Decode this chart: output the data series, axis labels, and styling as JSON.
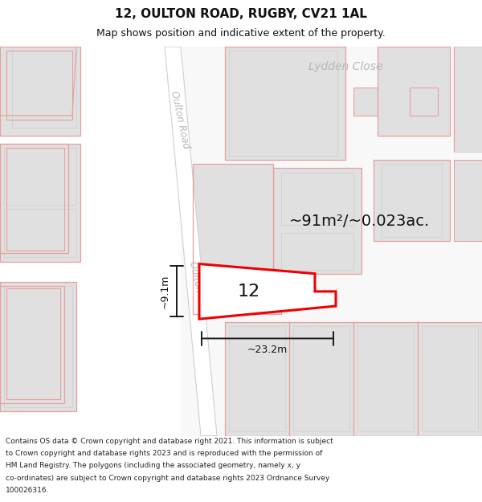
{
  "title": "12, OULTON ROAD, RUGBY, CV21 1AL",
  "subtitle": "Map shows position and indicative extent of the property.",
  "footer_lines": [
    "Contains OS data © Crown copyright and database right 2021. This information is subject",
    "to Crown copyright and database rights 2023 and is reproduced with the permission of",
    "HM Land Registry. The polygons (including the associated geometry, namely x, y",
    "co-ordinates) are subject to Crown copyright and database rights 2023 Ordnance Survey",
    "100026316."
  ],
  "area_label": "~91m²/~0.023ac.",
  "number_label": "12",
  "width_label": "~23.2m",
  "height_label": "~9.1m",
  "road_label": "Oulton Road",
  "close_label": "Lydden Close",
  "map_bg": "#f8f8f8",
  "building_fill": "#e0e0e0",
  "parcel_edge": "#e8a0a0",
  "road_fill": "#ffffff",
  "road_edge": "#d0d0d0",
  "highlight_fill": "#f5f5f5",
  "highlight_edge": "#ee0000",
  "dim_color": "#1a1a1a",
  "road_label_color": "#b8b8b8",
  "close_label_color": "#b8b8b8",
  "title_fontsize": 11,
  "subtitle_fontsize": 9,
  "footer_fontsize": 6.5,
  "area_fontsize": 14,
  "number_fontsize": 16,
  "dim_fontsize": 9
}
